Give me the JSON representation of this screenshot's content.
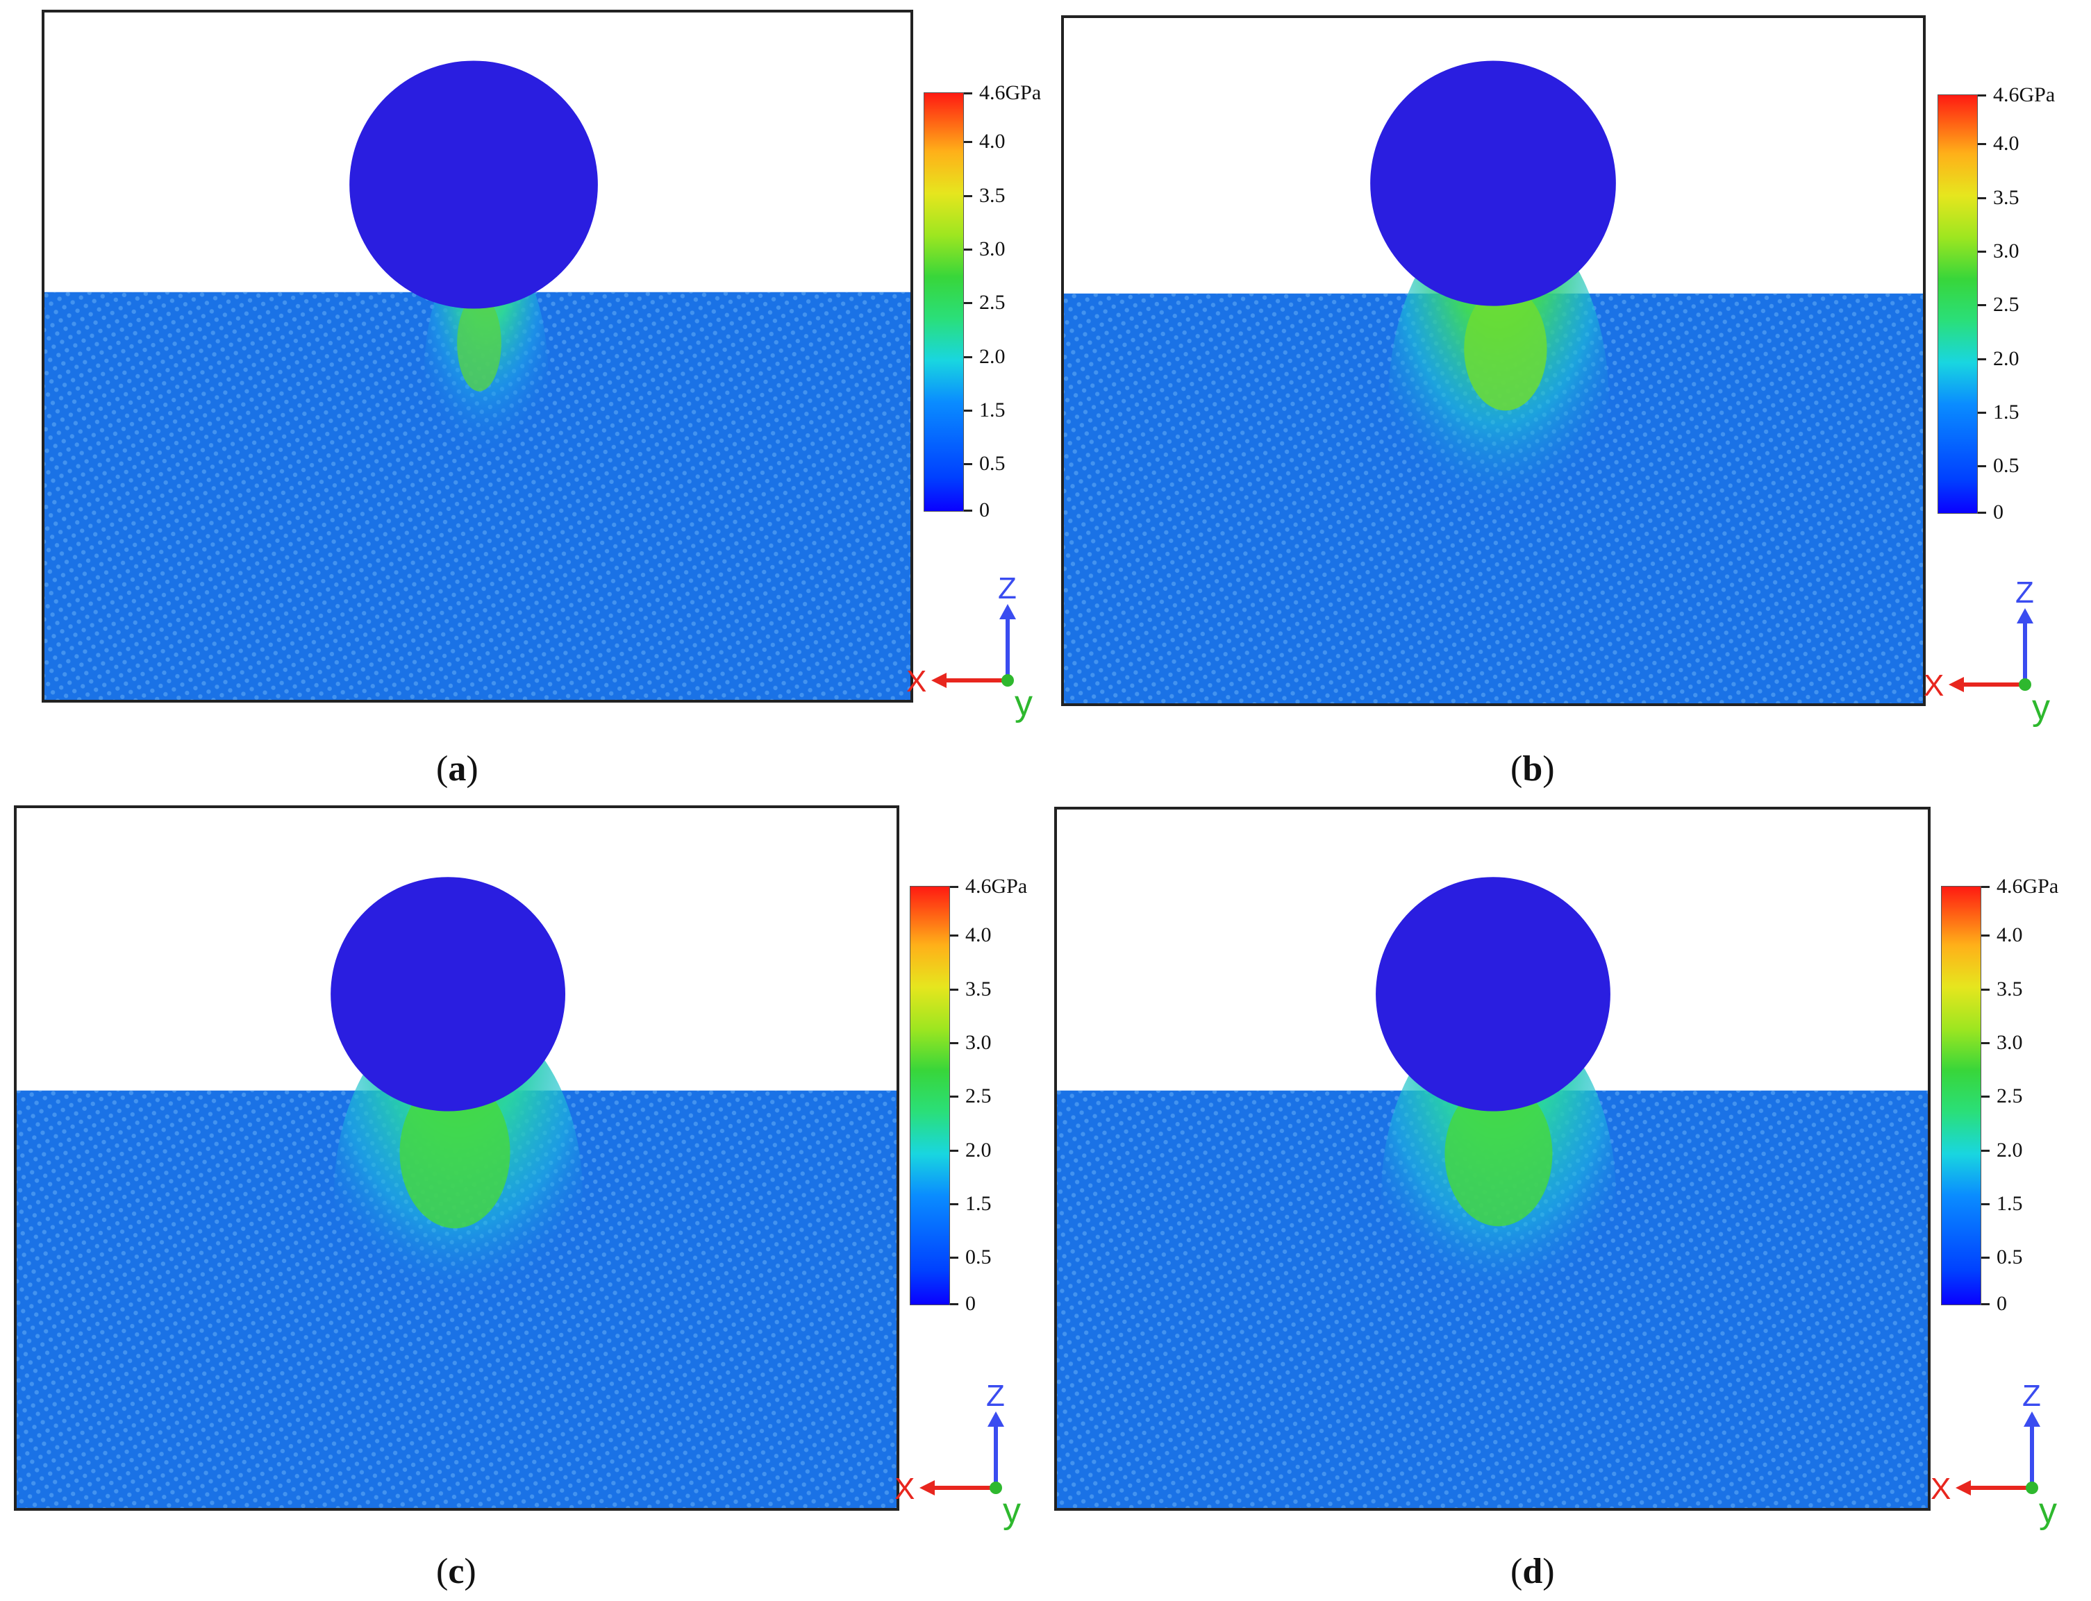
{
  "colorbar": {
    "max_label": "4.6GPa",
    "tick_labels": [
      "4.0",
      "3.5",
      "3.0",
      "2.5",
      "2.0",
      "1.5",
      "0.5",
      "0"
    ],
    "colors": {
      "low": "#0a00ff",
      "mid": "#38d63a",
      "high": "#ff1a12"
    }
  },
  "axes": {
    "z": "Z",
    "x": "X",
    "y": "y",
    "z_color": "#3a4cf0",
    "x_color": "#e8261e",
    "y_color": "#2eb82e"
  },
  "panels": [
    {
      "caption_open": "(",
      "caption_letter": "a",
      "caption_close": ")"
    },
    {
      "caption_open": "(",
      "caption_letter": "b",
      "caption_close": ")"
    },
    {
      "caption_open": "(",
      "caption_letter": "c",
      "caption_close": ")"
    },
    {
      "caption_open": "(",
      "caption_letter": "d",
      "caption_close": ")"
    }
  ]
}
